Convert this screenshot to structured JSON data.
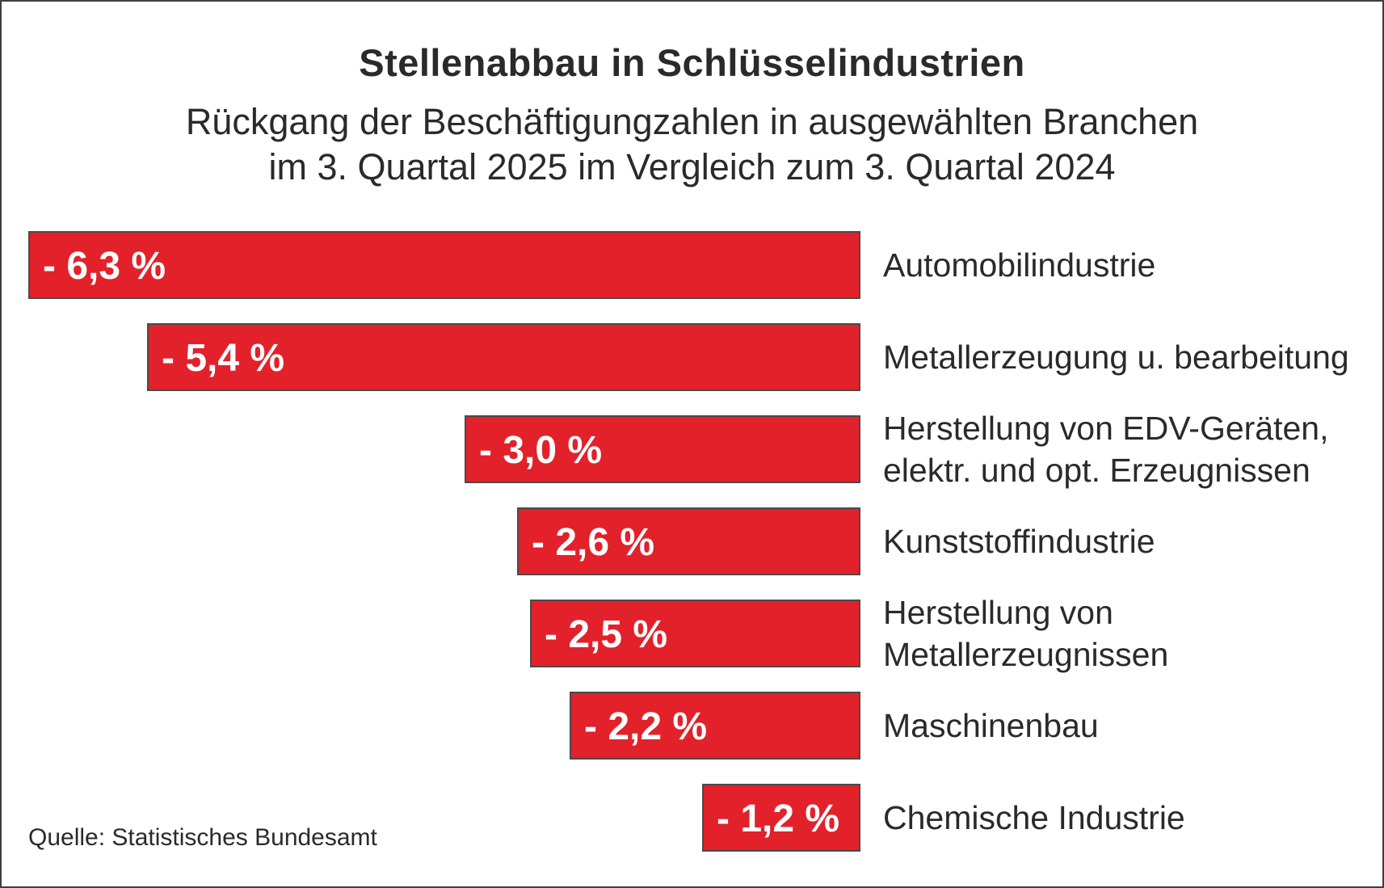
{
  "header": {
    "title": "Stellenabbau in Schlüsselindustrien",
    "subtitle_lines": [
      "Rückgang der Beschäftigungzahlen in ausgewählten Branchen",
      "im 3. Quartal 2025 im Vergleich zum 3. Quartal 2024"
    ]
  },
  "footer": {
    "source": "Quelle: Statistisches Bundesamt"
  },
  "colors": {
    "background": "#FFFFFF",
    "frame_border": "#3F3F3F",
    "bar_fill": "#E2212A",
    "bar_border": "#4A4A4A",
    "bar_value_text": "#FFFFFF",
    "text": "#2A2A2A"
  },
  "chart_data": {
    "type": "bar",
    "orientation": "horizontal",
    "bars_aligned": "right",
    "title": "Stellenabbau in Schlüsselindustrien",
    "subtitle": "Rückgang der Beschäftigungzahlen in ausgewählten Branchen im 3. Quartal 2025 im Vergleich zum 3. Quartal 2024",
    "xlabel": "",
    "ylabel": "",
    "unit": "%",
    "xlim": [
      -6.3,
      0
    ],
    "grid": false,
    "legend": false,
    "categories": [
      [
        "Automobilindustrie"
      ],
      [
        "Metallerzeugung u. bearbeitung"
      ],
      [
        "Herstellung von EDV-Geräten,",
        "elektr. und opt. Erzeugnissen"
      ],
      [
        "Kunststoffindustrie"
      ],
      [
        "Herstellung von",
        "Metallerzeugnissen"
      ],
      [
        "Maschinenbau"
      ],
      [
        "Chemische Industrie"
      ]
    ],
    "values": [
      -6.3,
      -5.4,
      -3.0,
      -2.6,
      -2.5,
      -2.2,
      -1.2
    ],
    "value_labels": [
      "- 6,3 %",
      "- 5,4 %",
      "- 3,0 %",
      "- 2,6 %",
      "- 2,5 %",
      "- 2,2 %",
      "- 1,2 %"
    ],
    "source": "Quelle: Statistisches Bundesamt"
  }
}
